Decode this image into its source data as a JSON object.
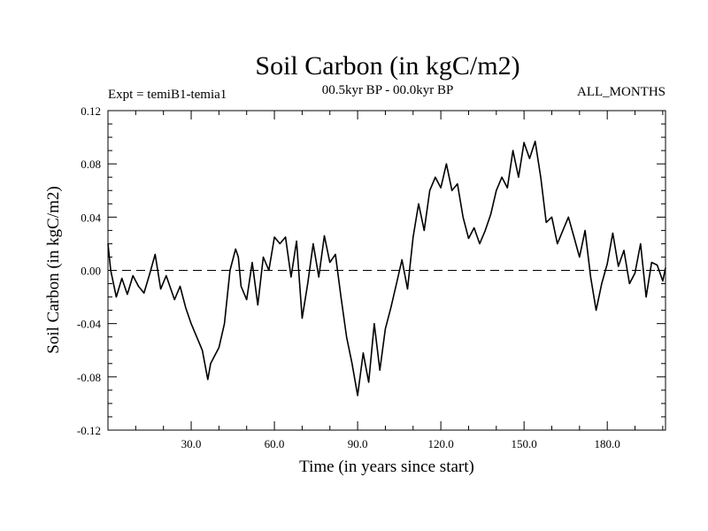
{
  "chart_data": {
    "type": "line",
    "title": "Soil Carbon (in kgC/m2)",
    "subtitle_left": "Expt = temiB1-temia1",
    "subtitle_center": "00.5kyr BP - 00.0kyr BP",
    "subtitle_right": "ALL_MONTHS",
    "xlabel": "Time (in years since start)",
    "ylabel": "Soil Carbon (in kgC/m2)",
    "xlim": [
      0,
      201
    ],
    "ylim": [
      -0.12,
      0.12
    ],
    "xticks": [
      30,
      60,
      90,
      120,
      150,
      180
    ],
    "xtick_labels": [
      "30.0",
      "60.0",
      "90.0",
      "120.0",
      "150.0",
      "180.0"
    ],
    "yticks": [
      -0.12,
      -0.08,
      -0.04,
      0.0,
      0.04,
      0.08,
      0.12
    ],
    "ytick_labels": [
      "-0.12",
      "-0.08",
      "-0.04",
      "0.00",
      "0.04",
      "0.08",
      "0.12"
    ],
    "reference_line": 0.0,
    "series": [
      {
        "name": "Soil Carbon",
        "color": "#000000",
        "x": [
          0,
          1,
          3,
          5,
          7,
          9,
          11,
          13,
          15,
          17,
          19,
          21,
          24,
          26,
          28,
          30,
          32,
          34,
          36,
          37,
          38,
          40,
          42,
          44,
          46,
          47,
          48,
          50,
          52,
          54,
          56,
          58,
          60,
          62,
          64,
          66,
          68,
          70,
          72,
          74,
          76,
          78,
          80,
          82,
          84,
          86,
          88,
          90,
          92,
          94,
          96,
          98,
          100,
          102,
          104,
          106,
          108,
          110,
          112,
          114,
          116,
          118,
          120,
          122,
          124,
          126,
          128,
          130,
          132,
          134,
          136,
          138,
          140,
          142,
          144,
          146,
          148,
          150,
          152,
          154,
          156,
          158,
          160,
          162,
          164,
          166,
          168,
          170,
          172,
          174,
          176,
          178,
          180,
          182,
          184,
          186,
          188,
          190,
          192,
          194,
          196,
          198,
          200,
          201
        ],
        "values": [
          0.02,
          0.0,
          -0.02,
          -0.006,
          -0.018,
          -0.004,
          -0.012,
          -0.017,
          -0.003,
          0.012,
          -0.014,
          -0.004,
          -0.022,
          -0.012,
          -0.028,
          -0.04,
          -0.05,
          -0.06,
          -0.082,
          -0.07,
          -0.066,
          -0.058,
          -0.04,
          0.0,
          0.016,
          0.01,
          -0.012,
          -0.022,
          0.006,
          -0.026,
          0.01,
          0.0,
          0.025,
          0.02,
          0.025,
          -0.005,
          0.022,
          -0.036,
          -0.01,
          0.02,
          -0.005,
          0.026,
          0.006,
          0.012,
          -0.02,
          -0.05,
          -0.07,
          -0.094,
          -0.062,
          -0.084,
          -0.04,
          -0.075,
          -0.044,
          -0.028,
          -0.01,
          0.008,
          -0.014,
          0.025,
          0.05,
          0.03,
          0.06,
          0.07,
          0.062,
          0.08,
          0.06,
          0.065,
          0.04,
          0.024,
          0.032,
          0.02,
          0.03,
          0.042,
          0.06,
          0.07,
          0.062,
          0.09,
          0.07,
          0.096,
          0.084,
          0.097,
          0.07,
          0.036,
          0.04,
          0.02,
          0.03,
          0.04,
          0.025,
          0.01,
          0.03,
          -0.005,
          -0.03,
          -0.01,
          0.005,
          0.028,
          0.003,
          0.015,
          -0.01,
          -0.002,
          0.02,
          -0.02,
          0.006,
          0.004,
          -0.008,
          0.002
        ]
      }
    ]
  }
}
